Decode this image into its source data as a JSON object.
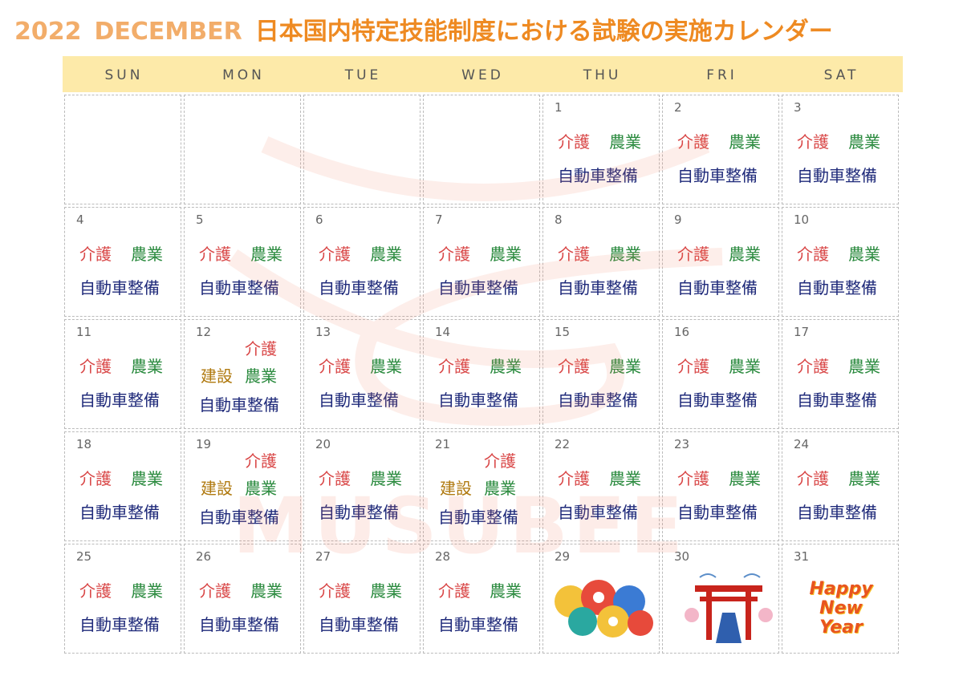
{
  "title": {
    "year": "2022",
    "month": "DECEMBER",
    "text": "日本国内特定技能制度における試験の実施カレンダー"
  },
  "watermark": "MUSUBEE",
  "weekdays": [
    "SUN",
    "MON",
    "TUE",
    "WED",
    "THU",
    "FRI",
    "SAT"
  ],
  "weeks": [
    [
      null,
      null,
      null,
      null,
      {
        "day": 1,
        "exams": [
          {
            "name": "介護",
            "color": "#d94848"
          },
          {
            "name": "農業",
            "color": "#2a8a3e"
          },
          {
            "name": "自動車整備",
            "color": "#1f2a7a"
          }
        ]
      },
      {
        "day": 2,
        "exams": [
          {
            "name": "介護",
            "color": "#d94848"
          },
          {
            "name": "農業",
            "color": "#2a8a3e"
          },
          {
            "name": "自動車整備",
            "color": "#1f2a7a"
          }
        ]
      },
      {
        "day": 3,
        "exams": [
          {
            "name": "介護",
            "color": "#d94848"
          },
          {
            "name": "農業",
            "color": "#2a8a3e"
          },
          {
            "name": "自動車整備",
            "color": "#1f2a7a"
          }
        ]
      }
    ],
    [
      {
        "day": 4,
        "exams": [
          {
            "name": "介護",
            "color": "#d94848"
          },
          {
            "name": "農業",
            "color": "#2a8a3e"
          },
          {
            "name": "自動車整備",
            "color": "#1f2a7a"
          }
        ]
      },
      {
        "day": 5,
        "exams": [
          {
            "name": "介護",
            "color": "#d94848"
          },
          {
            "name": "農業",
            "color": "#2a8a3e"
          },
          {
            "name": "自動車整備",
            "color": "#1f2a7a"
          }
        ]
      },
      {
        "day": 6,
        "exams": [
          {
            "name": "介護",
            "color": "#d94848"
          },
          {
            "name": "農業",
            "color": "#2a8a3e"
          },
          {
            "name": "自動車整備",
            "color": "#1f2a7a"
          }
        ]
      },
      {
        "day": 7,
        "exams": [
          {
            "name": "介護",
            "color": "#d94848"
          },
          {
            "name": "農業",
            "color": "#2a8a3e"
          },
          {
            "name": "自動車整備",
            "color": "#1f2a7a"
          }
        ]
      },
      {
        "day": 8,
        "exams": [
          {
            "name": "介護",
            "color": "#d94848"
          },
          {
            "name": "農業",
            "color": "#2a8a3e"
          },
          {
            "name": "自動車整備",
            "color": "#1f2a7a"
          }
        ]
      },
      {
        "day": 9,
        "exams": [
          {
            "name": "介護",
            "color": "#d94848"
          },
          {
            "name": "農業",
            "color": "#2a8a3e"
          },
          {
            "name": "自動車整備",
            "color": "#1f2a7a"
          }
        ]
      },
      {
        "day": 10,
        "exams": [
          {
            "name": "介護",
            "color": "#d94848"
          },
          {
            "name": "農業",
            "color": "#2a8a3e"
          },
          {
            "name": "自動車整備",
            "color": "#1f2a7a"
          }
        ]
      }
    ],
    [
      {
        "day": 11,
        "exams": [
          {
            "name": "介護",
            "color": "#d94848"
          },
          {
            "name": "農業",
            "color": "#2a8a3e"
          },
          {
            "name": "自動車整備",
            "color": "#1f2a7a"
          }
        ]
      },
      {
        "day": 12,
        "exams": [
          {
            "name": "介護",
            "color": "#d94848"
          },
          {
            "name": "建設",
            "color": "#b07a10"
          },
          {
            "name": "農業",
            "color": "#2a8a3e"
          },
          {
            "name": "自動車整備",
            "color": "#1f2a7a"
          }
        ]
      },
      {
        "day": 13,
        "exams": [
          {
            "name": "介護",
            "color": "#d94848"
          },
          {
            "name": "農業",
            "color": "#2a8a3e"
          },
          {
            "name": "自動車整備",
            "color": "#1f2a7a"
          }
        ]
      },
      {
        "day": 14,
        "exams": [
          {
            "name": "介護",
            "color": "#d94848"
          },
          {
            "name": "農業",
            "color": "#2a8a3e"
          },
          {
            "name": "自動車整備",
            "color": "#1f2a7a"
          }
        ]
      },
      {
        "day": 15,
        "exams": [
          {
            "name": "介護",
            "color": "#d94848"
          },
          {
            "name": "農業",
            "color": "#2a8a3e"
          },
          {
            "name": "自動車整備",
            "color": "#1f2a7a"
          }
        ]
      },
      {
        "day": 16,
        "exams": [
          {
            "name": "介護",
            "color": "#d94848"
          },
          {
            "name": "農業",
            "color": "#2a8a3e"
          },
          {
            "name": "自動車整備",
            "color": "#1f2a7a"
          }
        ]
      },
      {
        "day": 17,
        "exams": [
          {
            "name": "介護",
            "color": "#d94848"
          },
          {
            "name": "農業",
            "color": "#2a8a3e"
          },
          {
            "name": "自動車整備",
            "color": "#1f2a7a"
          }
        ]
      }
    ],
    [
      {
        "day": 18,
        "exams": [
          {
            "name": "介護",
            "color": "#d94848"
          },
          {
            "name": "農業",
            "color": "#2a8a3e"
          },
          {
            "name": "自動車整備",
            "color": "#1f2a7a"
          }
        ]
      },
      {
        "day": 19,
        "exams": [
          {
            "name": "介護",
            "color": "#d94848"
          },
          {
            "name": "建設",
            "color": "#b07a10"
          },
          {
            "name": "農業",
            "color": "#2a8a3e"
          },
          {
            "name": "自動車整備",
            "color": "#1f2a7a"
          }
        ]
      },
      {
        "day": 20,
        "exams": [
          {
            "name": "介護",
            "color": "#d94848"
          },
          {
            "name": "農業",
            "color": "#2a8a3e"
          },
          {
            "name": "自動車整備",
            "color": "#1f2a7a"
          }
        ]
      },
      {
        "day": 21,
        "exams": [
          {
            "name": "介護",
            "color": "#d94848"
          },
          {
            "name": "建設",
            "color": "#b07a10"
          },
          {
            "name": "農業",
            "color": "#2a8a3e"
          },
          {
            "name": "自動車整備",
            "color": "#1f2a7a"
          }
        ]
      },
      {
        "day": 22,
        "exams": [
          {
            "name": "介護",
            "color": "#d94848"
          },
          {
            "name": "農業",
            "color": "#2a8a3e"
          },
          {
            "name": "自動車整備",
            "color": "#1f2a7a"
          }
        ]
      },
      {
        "day": 23,
        "exams": [
          {
            "name": "介護",
            "color": "#d94848"
          },
          {
            "name": "農業",
            "color": "#2a8a3e"
          },
          {
            "name": "自動車整備",
            "color": "#1f2a7a"
          }
        ]
      },
      {
        "day": 24,
        "exams": [
          {
            "name": "介護",
            "color": "#d94848"
          },
          {
            "name": "農業",
            "color": "#2a8a3e"
          },
          {
            "name": "自動車整備",
            "color": "#1f2a7a"
          }
        ]
      }
    ],
    [
      {
        "day": 25,
        "exams": [
          {
            "name": "介護",
            "color": "#d94848"
          },
          {
            "name": "農業",
            "color": "#2a8a3e"
          },
          {
            "name": "自動車整備",
            "color": "#1f2a7a"
          }
        ]
      },
      {
        "day": 26,
        "exams": [
          {
            "name": "介護",
            "color": "#d94848"
          },
          {
            "name": "農業",
            "color": "#2a8a3e"
          },
          {
            "name": "自動車整備",
            "color": "#1f2a7a"
          }
        ]
      },
      {
        "day": 27,
        "exams": [
          {
            "name": "介護",
            "color": "#d94848"
          },
          {
            "name": "農業",
            "color": "#2a8a3e"
          },
          {
            "name": "自動車整備",
            "color": "#1f2a7a"
          }
        ]
      },
      {
        "day": 28,
        "exams": [
          {
            "name": "介護",
            "color": "#d94848"
          },
          {
            "name": "農業",
            "color": "#2a8a3e"
          },
          {
            "name": "自動車整備",
            "color": "#1f2a7a"
          }
        ]
      },
      {
        "day": 29
      },
      {
        "day": 30
      },
      {
        "day": 31,
        "greeting": "Happy New Year"
      }
    ]
  ]
}
